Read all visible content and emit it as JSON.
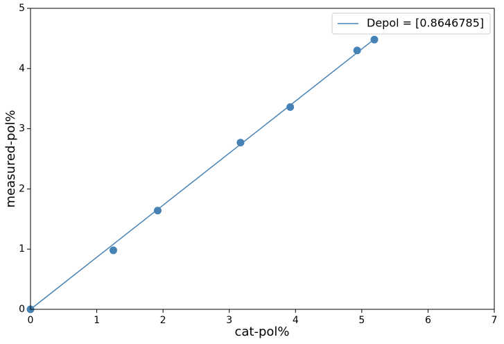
{
  "chart_data": {
    "type": "scatter",
    "x_label": "cat-pol%",
    "y_label": "measured-pol%",
    "x": [
      0,
      1.25,
      1.92,
      3.17,
      3.92,
      4.93,
      5.19
    ],
    "series": [
      {
        "type": "scatter",
        "color": "#4682b4",
        "values": [
          0,
          0.98,
          1.64,
          2.77,
          3.36,
          4.3,
          4.48
        ]
      },
      {
        "type": "line",
        "name": "Depol = [0.8646785]",
        "color": "#4682b4",
        "values": [
          0,
          1.081,
          1.66,
          2.741,
          3.39,
          4.263,
          4.488
        ]
      }
    ],
    "xlim": [
      0,
      7
    ],
    "ylim": [
      0,
      5
    ],
    "xticks": [
      0,
      1,
      2,
      3,
      4,
      5,
      6,
      7
    ],
    "yticks": [
      0,
      1,
      2,
      3,
      4,
      5
    ],
    "legend": "upper right"
  }
}
